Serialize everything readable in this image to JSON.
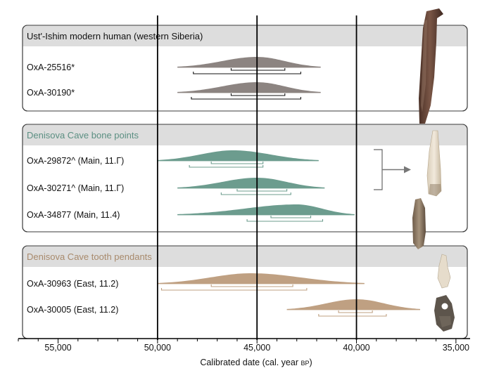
{
  "chart_data": {
    "type": "area",
    "xlabel": "Calibrated date (cal. year BP)",
    "xlabel_parts": {
      "main": "Calibrated date (cal. year ",
      "small_caps": "BP",
      "close": ")"
    },
    "x_reversed": true,
    "xlim": [
      57000,
      34500
    ],
    "x_ticks": [
      55000,
      50000,
      45000,
      40000,
      35000
    ],
    "x_tick_labels": [
      "55,000",
      "50,000",
      "45,000",
      "40,000",
      "35,000"
    ],
    "reference_lines": [
      50000,
      45000,
      40000
    ],
    "panels": [
      {
        "title": "Ust'-Ishim modern human (western Siberia)",
        "title_color": "#111111",
        "color": "#8c8481",
        "series": [
          {
            "name": "OxA-25516*",
            "range": [
              49000,
              41800
            ],
            "peak": 45000,
            "sigma1": [
              46300,
              43600
            ],
            "sigma2": [
              48200,
              42800
            ]
          },
          {
            "name": "OxA-30190*",
            "range": [
              49000,
              41800
            ],
            "peak": 45000,
            "sigma1": [
              46300,
              43600
            ],
            "sigma2": [
              48300,
              42800
            ]
          }
        ]
      },
      {
        "title": "Denisova Cave bone points",
        "title_color": "#5b8f82",
        "color": "#6c9c8e",
        "series": [
          {
            "name": "OxA-29872^ (Main, 11.Γ)",
            "range": [
              50000,
              41900
            ],
            "peak": 46200,
            "sigma1": [
              47300,
              44700
            ],
            "sigma2": [
              48400,
              44700
            ]
          },
          {
            "name": "OxA-30271^ (Main, 11.Γ)",
            "range": [
              49000,
              41600
            ],
            "peak": 45000,
            "sigma1": [
              46000,
              43500
            ],
            "sigma2": [
              46800,
              43300
            ]
          },
          {
            "name": "OxA-34877 (Main, 11.4)",
            "range": [
              49000,
              40100
            ],
            "peak": 43000,
            "sigma1": [
              44300,
              42300
            ],
            "sigma2": [
              45500,
              41700
            ]
          }
        ]
      },
      {
        "title": "Denisova Cave tooth pendants",
        "title_color": "#a88a6c",
        "color": "#bfa082",
        "series": [
          {
            "name": "OxA-30963 (East, 11.2)",
            "range": [
              50000,
              39600
            ],
            "peak": 45300,
            "sigma1": [
              47300,
              43200
            ],
            "sigma2": [
              49800,
              42500
            ]
          },
          {
            "name": "OxA-30005 (East, 11.2)",
            "range": [
              43500,
              36800
            ],
            "peak": 40000,
            "sigma1": [
              40900,
              39200
            ],
            "sigma2": [
              41900,
              38500
            ]
          }
        ]
      }
    ],
    "callout_bracket": {
      "series": [
        "OxA-29872^ (Main, 11.Γ)",
        "OxA-30271^ (Main, 11.Γ)"
      ]
    },
    "images": [
      "ust-ishim-femur-photo",
      "denisova-bone-point-photo-1",
      "denisova-bone-point-photo-2",
      "tooth-pendant-photo-1",
      "tooth-pendant-photo-2"
    ]
  }
}
